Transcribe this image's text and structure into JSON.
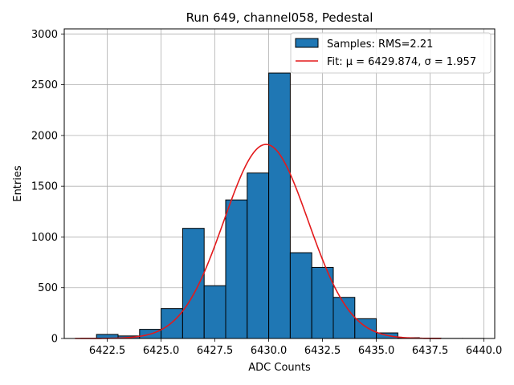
{
  "chart_data": {
    "type": "bar",
    "title": "Run 649, channel058, Pedestal",
    "xlabel": "ADC Counts",
    "ylabel": "Entries",
    "xlim": [
      6420.5,
      6440.5
    ],
    "ylim": [
      0,
      3050
    ],
    "xticks": [
      6422.5,
      6425.0,
      6427.5,
      6430.0,
      6432.5,
      6435.0,
      6437.5,
      6440.0
    ],
    "xtick_labels": [
      "6422.5",
      "6425.0",
      "6427.5",
      "6430.0",
      "6432.5",
      "6435.0",
      "6437.5",
      "6440.0"
    ],
    "yticks": [
      0,
      500,
      1000,
      1500,
      2000,
      2500,
      3000
    ],
    "ytick_labels": [
      "0",
      "500",
      "1000",
      "1500",
      "2000",
      "2500",
      "3000"
    ],
    "grid": true,
    "legend_position": "top-right",
    "bin_width": 1,
    "bins": [
      {
        "start": 6422,
        "value": 40
      },
      {
        "start": 6423,
        "value": 25
      },
      {
        "start": 6424,
        "value": 90
      },
      {
        "start": 6425,
        "value": 295
      },
      {
        "start": 6426,
        "value": 1085
      },
      {
        "start": 6427,
        "value": 520
      },
      {
        "start": 6428,
        "value": 1365
      },
      {
        "start": 6429,
        "value": 1630
      },
      {
        "start": 6430,
        "value": 2615
      },
      {
        "start": 6431,
        "value": 845
      },
      {
        "start": 6432,
        "value": 700
      },
      {
        "start": 6433,
        "value": 405
      },
      {
        "start": 6434,
        "value": 195
      },
      {
        "start": 6435,
        "value": 55
      },
      {
        "start": 6436,
        "value": 8
      },
      {
        "start": 6437,
        "value": 3
      },
      {
        "start": 6438,
        "value": 1
      },
      {
        "start": 6439,
        "value": 1
      }
    ],
    "fit": {
      "mu": 6429.874,
      "sigma": 1.957,
      "amplitude": 1912,
      "x_range": [
        6421,
        6438
      ]
    },
    "series": [
      {
        "name": "Samples: RMS=2.21",
        "kind": "histogram",
        "color": "#1f77b4"
      },
      {
        "name": "Fit: μ = 6429.874, σ = 1.957",
        "kind": "line",
        "color": "#e31a1c"
      }
    ]
  }
}
